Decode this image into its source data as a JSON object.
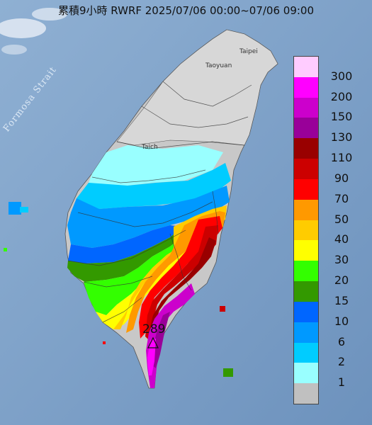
{
  "title": "累積9小時 RWRF 2025/07/06 00:00~07/06 09:00",
  "strait_label": "Formosa Strait",
  "city_labels": {
    "taipei": "Taipei",
    "taoyuan": "Taoyuan",
    "taichung": "Taich"
  },
  "max_value_label": "289",
  "legend": [
    {
      "label": "300",
      "color": "#ffccff"
    },
    {
      "label": "200",
      "color": "#ff00ff"
    },
    {
      "label": "150",
      "color": "#cc00cc"
    },
    {
      "label": "130",
      "color": "#990099"
    },
    {
      "label": "110",
      "color": "#990000"
    },
    {
      "label": "90",
      "color": "#cc0000"
    },
    {
      "label": "70",
      "color": "#ff0000"
    },
    {
      "label": "50",
      "color": "#ff9900"
    },
    {
      "label": "40",
      "color": "#ffcc00"
    },
    {
      "label": "30",
      "color": "#ffff00"
    },
    {
      "label": "20",
      "color": "#33ff00"
    },
    {
      "label": "15",
      "color": "#339900"
    },
    {
      "label": "10",
      "color": "#0066ff"
    },
    {
      "label": "6",
      "color": "#0099ff"
    },
    {
      "label": "2",
      "color": "#00ccff"
    },
    {
      "label": "1",
      "color": "#99ffff"
    },
    {
      "label": "",
      "color": "#c0c0c0"
    }
  ],
  "colors": {
    "sea": "#7fa3c9",
    "land_nodata": "#c8c8c8",
    "mountain_gray": "#d9d9d9"
  }
}
